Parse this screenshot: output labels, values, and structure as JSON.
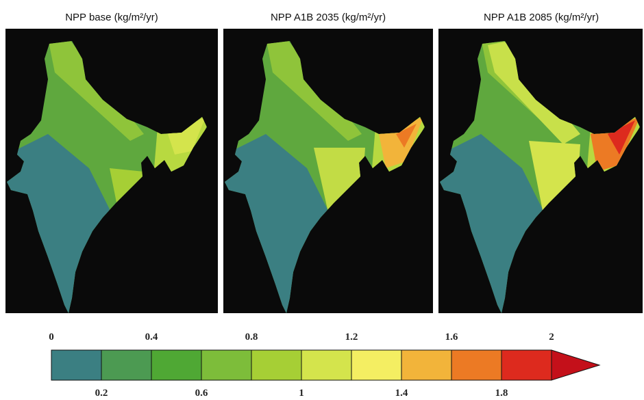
{
  "panels": [
    {
      "title": "NPP base (kg/m²/yr)"
    },
    {
      "title": "NPP A1B 2035 (kg/m²/yr)"
    },
    {
      "title": "NPP A1B 2085 (kg/m²/yr)"
    }
  ],
  "colorbar": {
    "ticks": [
      0,
      0.2,
      0.4,
      0.6,
      0.8,
      1,
      1.2,
      1.4,
      1.6,
      1.8,
      2
    ],
    "colors": [
      "#3b7f82",
      "#4c9a52",
      "#4fa834",
      "#7dbd3a",
      "#a6cf35",
      "#d4e44c",
      "#f4ee62",
      "#f2b43a",
      "#ec7a24",
      "#dd2a1e"
    ],
    "extend_color": "#c4101a"
  }
}
